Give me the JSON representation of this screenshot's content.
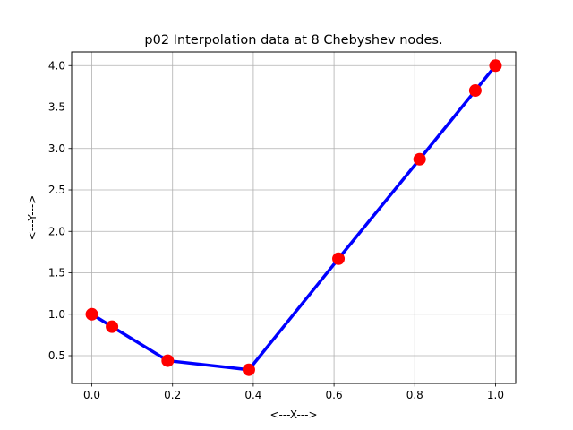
{
  "chart_data": {
    "type": "line",
    "title": "p02 Interpolation data at 8 Chebyshev nodes.",
    "xlabel": "<---X--->",
    "ylabel": "<---Y--->",
    "xlim": [
      -0.05,
      1.05
    ],
    "ylim": [
      0.165,
      4.165
    ],
    "xticks": [
      "0.0",
      "0.2",
      "0.4",
      "0.6",
      "0.8",
      "1.0"
    ],
    "yticks": [
      "0.5",
      "1.0",
      "1.5",
      "2.0",
      "2.5",
      "3.0",
      "3.5",
      "4.0"
    ],
    "grid": true,
    "series": [
      {
        "line_color": "#0000ff",
        "marker_color": "#ff0000",
        "x": [
          0.0,
          0.05,
          0.188,
          0.389,
          0.611,
          0.812,
          0.95,
          1.0
        ],
        "y": [
          1.0,
          0.85,
          0.44,
          0.33,
          1.67,
          2.87,
          3.7,
          4.0
        ]
      }
    ]
  }
}
